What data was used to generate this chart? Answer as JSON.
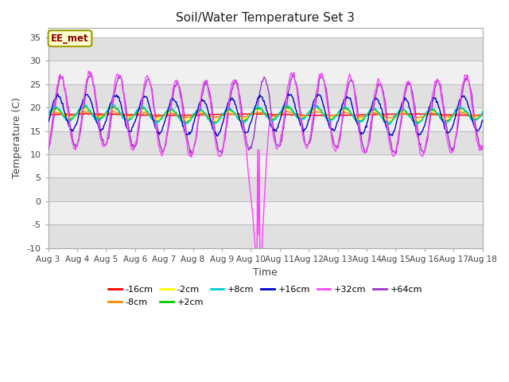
{
  "title": "Soil/Water Temperature Set 3",
  "xlabel": "Time",
  "ylabel": "Temperature (C)",
  "ylim": [
    -10,
    37
  ],
  "yticks": [
    -10,
    -5,
    0,
    5,
    10,
    15,
    20,
    25,
    30,
    35
  ],
  "x_tick_labels": [
    "Aug 3",
    "Aug 4",
    "Aug 5",
    "Aug 6",
    "Aug 7",
    "Aug 8",
    "Aug 9",
    "Aug 10",
    "Aug 11",
    "Aug 12",
    "Aug 13",
    "Aug 14",
    "Aug 15",
    "Aug 16",
    "Aug 17",
    "Aug 18"
  ],
  "annotation_text": "EE_met",
  "colors": {
    "-16cm": "#ff0000",
    "-8cm": "#ff8800",
    "-2cm": "#ffff00",
    "+2cm": "#00cc00",
    "+8cm": "#00cccc",
    "+16cm": "#0000cc",
    "+32cm": "#ff44ff",
    "+64cm": "#9933cc"
  },
  "background_color": "#ffffff",
  "band_colors": [
    "#e0e0e0",
    "#f0f0f0"
  ]
}
